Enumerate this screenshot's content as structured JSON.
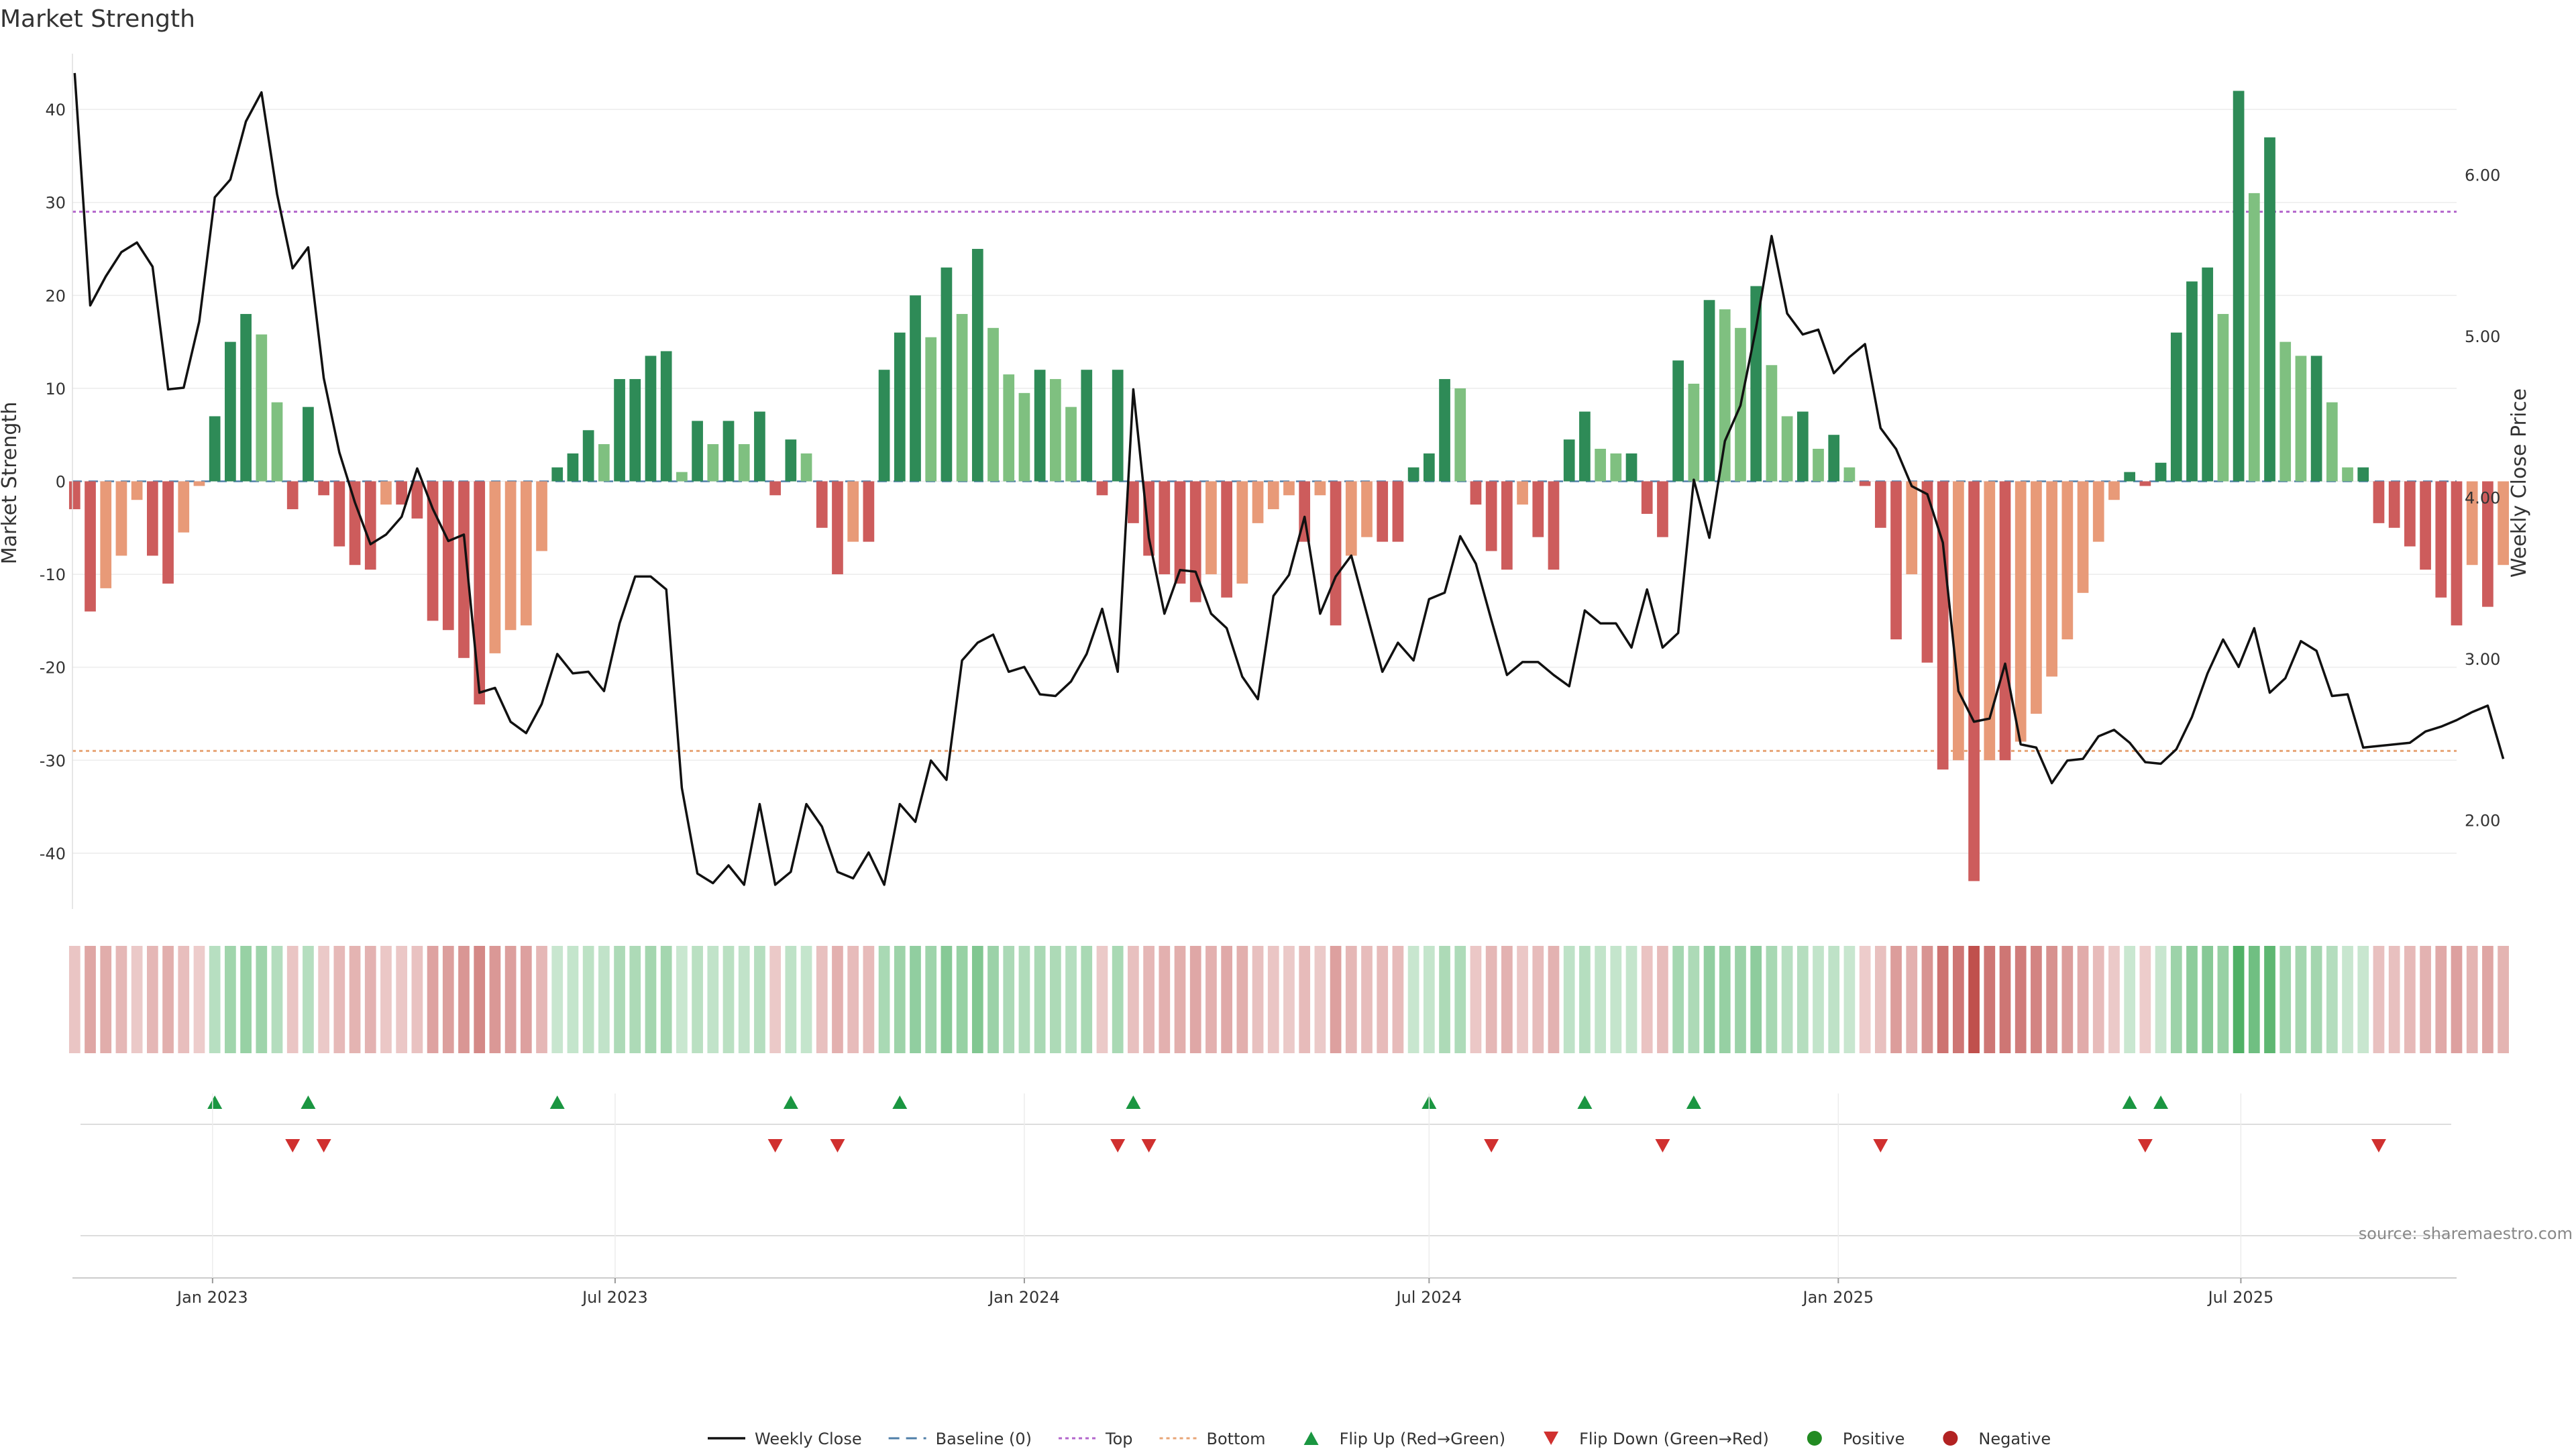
{
  "chart_data": {
    "type": "bar",
    "title": "Market Strength",
    "ylabel": "Market Strength",
    "y2label": "Weekly Close Price",
    "ylim": [
      -46,
      46
    ],
    "y2lim": [
      1.45,
      6.75
    ],
    "yticks": [
      40,
      30,
      20,
      10,
      0,
      -10,
      -20,
      -30,
      -40
    ],
    "y2ticks": [
      "6.00",
      "5.00",
      "4.00",
      "3.00",
      "2.00"
    ],
    "top_level": 29,
    "bottom_level": -29,
    "x_start": "2022-10-31",
    "x_step_days": 7,
    "x_range_days": [
      -1,
      1071
    ],
    "xticks": [
      {
        "label": "Jan 2023",
        "date": "2023-01-01"
      },
      {
        "label": "Jul 2023",
        "date": "2023-07-01"
      },
      {
        "label": "Jan 2024",
        "date": "2024-01-01"
      },
      {
        "label": "Jul 2024",
        "date": "2024-07-01"
      },
      {
        "label": "Jan 2025",
        "date": "2025-01-01"
      },
      {
        "label": "Jul 2025",
        "date": "2025-07-01"
      }
    ],
    "strength": [
      -3,
      -14,
      -11.5,
      -8,
      -2,
      -8,
      -11,
      -5.5,
      -0.5,
      7,
      15,
      18,
      15.8,
      8.5,
      -3,
      8,
      -1.5,
      -7,
      -9,
      -9.5,
      -2.5,
      -2.5,
      -4,
      -15,
      -16,
      -19,
      -24,
      -18.5,
      -16,
      -15.5,
      -7.5,
      1.5,
      3,
      5.5,
      4,
      11,
      11,
      13.5,
      14,
      1,
      6.5,
      4,
      6.5,
      4,
      7.5,
      -1.5,
      4.5,
      3,
      -5,
      -10,
      -6.5,
      -6.5,
      12,
      16,
      20,
      15.5,
      23,
      18,
      25,
      16.5,
      11.5,
      9.5,
      12,
      11,
      8,
      12,
      -1.5,
      12,
      -4.5,
      -8,
      -10,
      -11,
      -13,
      -10,
      -12.5,
      -11,
      -4.5,
      -3,
      -1.5,
      -6.5,
      -1.5,
      -15.5,
      -8,
      -6,
      -6.5,
      -6.5,
      1.5,
      3,
      11,
      10,
      -2.5,
      -7.5,
      -9.5,
      -2.5,
      -6,
      -9.5,
      4.5,
      7.5,
      3.5,
      3,
      3,
      -3.5,
      -6,
      13,
      10.5,
      19.5,
      18.5,
      16.5,
      21,
      12.5,
      7,
      7.5,
      3.5,
      5,
      1.5,
      -0.5,
      -5,
      -17,
      -10,
      -19.5,
      -31,
      -30,
      -43,
      -30,
      -30,
      -28,
      -25,
      -21,
      -17,
      -12,
      -6.5,
      -2,
      1,
      -0.5,
      2,
      16,
      21.5,
      23,
      18,
      42,
      31,
      37,
      15,
      13.5,
      13.5,
      8.5,
      1.5,
      1.5,
      -4.5,
      -5,
      -7,
      -9.5,
      -12.5,
      -15.5,
      -9,
      -13.5,
      -9
    ],
    "close": [
      6.63,
      5.19,
      5.37,
      5.52,
      5.58,
      5.43,
      4.67,
      4.68,
      5.09,
      5.86,
      5.97,
      6.33,
      6.51,
      5.88,
      5.42,
      5.55,
      4.74,
      4.28,
      3.97,
      3.71,
      3.77,
      3.88,
      4.18,
      3.93,
      3.73,
      3.77,
      2.79,
      2.82,
      2.61,
      2.54,
      2.72,
      3.03,
      2.91,
      2.92,
      2.8,
      3.22,
      3.51,
      3.51,
      3.43,
      2.2,
      1.67,
      1.61,
      1.72,
      1.6,
      2.1,
      1.6,
      1.68,
      2.1,
      1.96,
      1.68,
      1.64,
      1.8,
      1.6,
      2.1,
      1.99,
      2.37,
      2.25,
      2.99,
      3.1,
      3.15,
      2.92,
      2.95,
      2.78,
      2.77,
      2.86,
      3.03,
      3.31,
      2.92,
      4.67,
      3.75,
      3.28,
      3.55,
      3.54,
      3.28,
      3.19,
      2.89,
      2.75,
      3.39,
      3.52,
      3.88,
      3.28,
      3.51,
      3.64,
      3.28,
      2.92,
      3.1,
      2.99,
      3.37,
      3.41,
      3.76,
      3.59,
      3.24,
      2.9,
      2.98,
      2.98,
      2.9,
      2.83,
      3.3,
      3.22,
      3.22,
      3.07,
      3.43,
      3.07,
      3.16,
      4.11,
      3.75,
      4.35,
      4.57,
      5.05,
      5.62,
      5.14,
      5.01,
      5.04,
      4.77,
      4.87,
      4.95,
      4.43,
      4.3,
      4.07,
      4.02,
      3.72,
      2.8,
      2.61,
      2.63,
      2.97,
      2.47,
      2.45,
      2.23,
      2.37,
      2.38,
      2.52,
      2.56,
      2.48,
      2.36,
      2.35,
      2.44,
      2.64,
      2.91,
      3.12,
      2.95,
      3.19,
      2.79,
      2.88,
      3.11,
      3.05,
      2.77,
      2.78,
      2.45,
      2.46,
      2.47,
      2.48,
      2.55,
      2.58,
      2.62,
      2.67,
      2.71,
      2.38
    ],
    "legend": [
      "Weekly Close",
      "Baseline (0)",
      "Top",
      "Bottom",
      "Flip Up (Red→Green)",
      "Flip Down (Green→Red)",
      "Positive",
      "Negative"
    ],
    "flip_up_weeks": [
      9,
      15,
      31,
      46,
      53,
      68,
      87,
      97,
      104,
      132,
      134
    ],
    "flip_down_weeks": [
      14,
      16,
      45,
      49,
      67,
      69,
      91,
      102,
      116,
      133,
      148
    ],
    "colors": {
      "pos_strong": "#2e8b57",
      "pos_light": "#7fc080",
      "neg_strong": "#cd5c5c",
      "neg_light": "#e89a78",
      "close_line": "#111111",
      "baseline": "#4f7fa8",
      "top_line": "#b366cc",
      "bottom_line": "#e8a577",
      "flip_up": "#1a9641",
      "flip_down": "#d0302f",
      "positive_dot": "#228b22",
      "negative_dot": "#b22222"
    }
  },
  "source_text": "source: sharemaestro.com"
}
